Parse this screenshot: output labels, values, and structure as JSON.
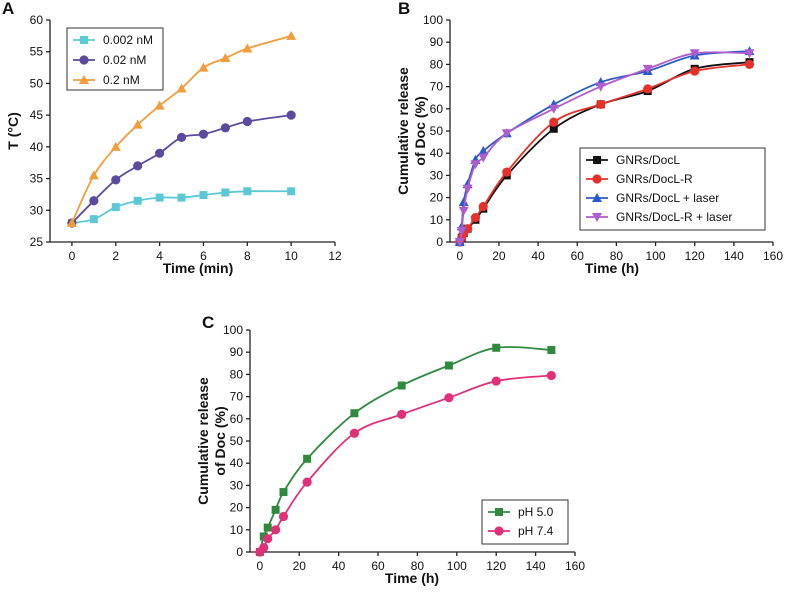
{
  "chart_data": [
    {
      "panel": "A",
      "type": "line",
      "xlabel": "Time (min)",
      "ylabel": "T (°C)",
      "xlim": [
        -1,
        12
      ],
      "ylim": [
        25,
        60
      ],
      "xticks": [
        0,
        2,
        4,
        6,
        8,
        10,
        12
      ],
      "yticks": [
        25,
        30,
        35,
        40,
        45,
        50,
        55,
        60
      ],
      "legend_position": "top-left",
      "series": [
        {
          "name": "0.002 nM",
          "color": "#5bc8d6",
          "marker": "square",
          "x": [
            0,
            1,
            2,
            3,
            4,
            5,
            6,
            7,
            8,
            10
          ],
          "values": [
            28.0,
            28.6,
            30.5,
            31.5,
            32.0,
            32.0,
            32.4,
            32.8,
            33.0,
            33.0
          ]
        },
        {
          "name": "0.02 nM",
          "color": "#5b4a9e",
          "marker": "circle",
          "x": [
            0,
            1,
            2,
            3,
            4,
            5,
            6,
            7,
            8,
            10
          ],
          "values": [
            28.0,
            31.5,
            34.8,
            37.0,
            39.0,
            41.5,
            42.0,
            43.0,
            44.0,
            45.0
          ]
        },
        {
          "name": "0.2 nM",
          "color": "#f39c3a",
          "marker": "triangle",
          "x": [
            0,
            1,
            2,
            3,
            4,
            5,
            6,
            7,
            8,
            10
          ],
          "values": [
            28.0,
            35.5,
            40.0,
            43.5,
            46.5,
            49.2,
            52.5,
            54.0,
            55.5,
            57.5
          ]
        }
      ]
    },
    {
      "panel": "B",
      "type": "line",
      "xlabel": "Time (h)",
      "ylabel": [
        "Cumulative release",
        "of Doc (%)"
      ],
      "xlim": [
        -5,
        160
      ],
      "ylim": [
        0,
        100
      ],
      "xticks": [
        0,
        20,
        40,
        60,
        80,
        100,
        120,
        140,
        160
      ],
      "yticks": [
        0,
        10,
        20,
        30,
        40,
        50,
        60,
        70,
        80,
        90,
        100
      ],
      "legend_position": "bottom-right",
      "series": [
        {
          "name": "GNRs/DocL",
          "color": "#111111",
          "marker": "square",
          "x": [
            0,
            1,
            2,
            4,
            8,
            12,
            24,
            48,
            72,
            96,
            120,
            148
          ],
          "values": [
            0,
            2,
            4,
            6,
            10,
            15,
            30,
            51,
            62,
            68,
            78,
            81
          ]
        },
        {
          "name": "GNRs/DocL-R",
          "color": "#e8302a",
          "marker": "circle",
          "x": [
            0,
            1,
            2,
            4,
            8,
            12,
            24,
            48,
            72,
            96,
            120,
            148
          ],
          "values": [
            0,
            2,
            4,
            6,
            11,
            16,
            31.5,
            54,
            62,
            69,
            77,
            80
          ]
        },
        {
          "name": "GNRs/DocL + laser",
          "color": "#2a5cc8",
          "marker": "triangle",
          "x": [
            0,
            1,
            2,
            4,
            8,
            12,
            24,
            48,
            72,
            96,
            120,
            148
          ],
          "values": [
            0,
            7,
            18,
            26,
            37,
            41,
            49,
            62,
            72,
            77,
            84,
            86
          ]
        },
        {
          "name": "GNRs/DocL-R + laser",
          "color": "#b15ccc",
          "marker": "triangle-down",
          "x": [
            0,
            1,
            2,
            4,
            8,
            12,
            24,
            48,
            72,
            96,
            120,
            148
          ],
          "values": [
            0,
            5,
            14,
            24,
            35,
            38,
            49,
            60,
            70,
            78,
            85,
            85
          ]
        }
      ]
    },
    {
      "panel": "C",
      "type": "line",
      "xlabel": "Time (h)",
      "ylabel": [
        "Cumulative release",
        "of Doc (%)"
      ],
      "xlim": [
        -5,
        160
      ],
      "ylim": [
        0,
        100
      ],
      "xticks": [
        0,
        20,
        40,
        60,
        80,
        100,
        120,
        140,
        160
      ],
      "yticks": [
        0,
        10,
        20,
        30,
        40,
        50,
        60,
        70,
        80,
        90,
        100
      ],
      "legend_position": "bottom-right",
      "series": [
        {
          "name": "pH 5.0",
          "color": "#2e8b3e",
          "marker": "square",
          "x": [
            0,
            2,
            4,
            8,
            12,
            24,
            48,
            72,
            96,
            120,
            148
          ],
          "values": [
            0,
            7,
            11,
            19,
            27,
            42,
            62.5,
            75,
            84,
            92,
            91
          ]
        },
        {
          "name": "pH 7.4",
          "color": "#e0307a",
          "marker": "circle",
          "x": [
            0,
            2,
            4,
            8,
            12,
            24,
            48,
            72,
            96,
            120,
            148
          ],
          "values": [
            0,
            2,
            6,
            10,
            16,
            31.5,
            53.5,
            62,
            69.5,
            77,
            79.5
          ]
        }
      ]
    }
  ]
}
